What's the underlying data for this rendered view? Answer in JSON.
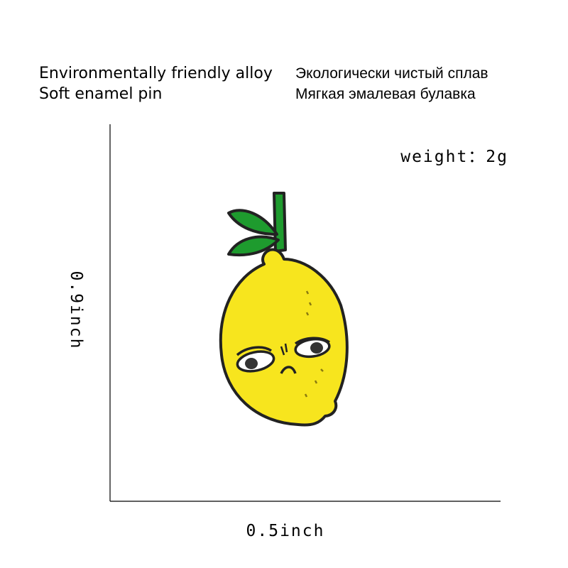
{
  "header": {
    "english": [
      "Environmentally friendly alloy",
      "Soft enamel pin"
    ],
    "russian": [
      "Экологически чистый сплав",
      "Мягкая эмалевая булавка"
    ]
  },
  "weight": "weight：2g",
  "dimensions": {
    "height": "0.9inch",
    "width": "0.5inch"
  }
}
